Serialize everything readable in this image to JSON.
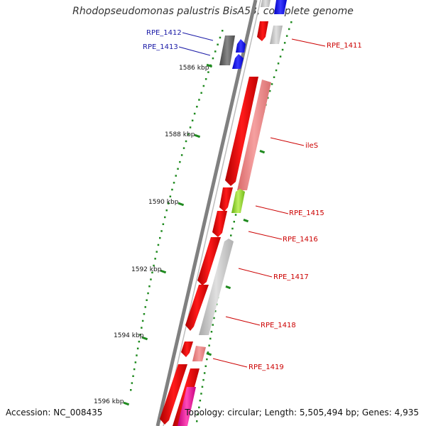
{
  "title": "Rhodopseudomonas palustris BisA53, complete genome",
  "accession_text": "Accession: NC_008435",
  "topology_text": "Topology: circular; Length: 5,505,494 bp; Genes: 4,935",
  "colors": {
    "backbone": "#7a7a7a",
    "tick": "#1f8a1f",
    "label_red": "#cc0000",
    "label_blue": "#1a1aa6",
    "gene_red": "#ee0000",
    "gene_pink": "#f08a8a",
    "gene_gray": "#c8c8c8",
    "gene_darkgray": "#666666",
    "gene_blue": "#1a1aff",
    "gene_green": "#99e62e",
    "gene_magenta": "#ee1a99"
  },
  "scale_ticks": [
    {
      "label": "1586 kbp"
    },
    {
      "label": "1588 kbp"
    },
    {
      "label": "1590 kbp"
    },
    {
      "label": "1592 kbp"
    },
    {
      "label": "1594 kbp"
    },
    {
      "label": "1596 kbp"
    }
  ],
  "gene_labels": [
    {
      "text": "RPE_1411",
      "color": "red"
    },
    {
      "text": "RPE_1412",
      "color": "blue"
    },
    {
      "text": "RPE_1413",
      "color": "blue"
    },
    {
      "text": "ileS",
      "color": "red"
    },
    {
      "text": "RPE_1415",
      "color": "red"
    },
    {
      "text": "RPE_1416",
      "color": "red"
    },
    {
      "text": "RPE_1417",
      "color": "red"
    },
    {
      "text": "RPE_1418",
      "color": "red"
    },
    {
      "text": "RPE_1419",
      "color": "red"
    }
  ]
}
